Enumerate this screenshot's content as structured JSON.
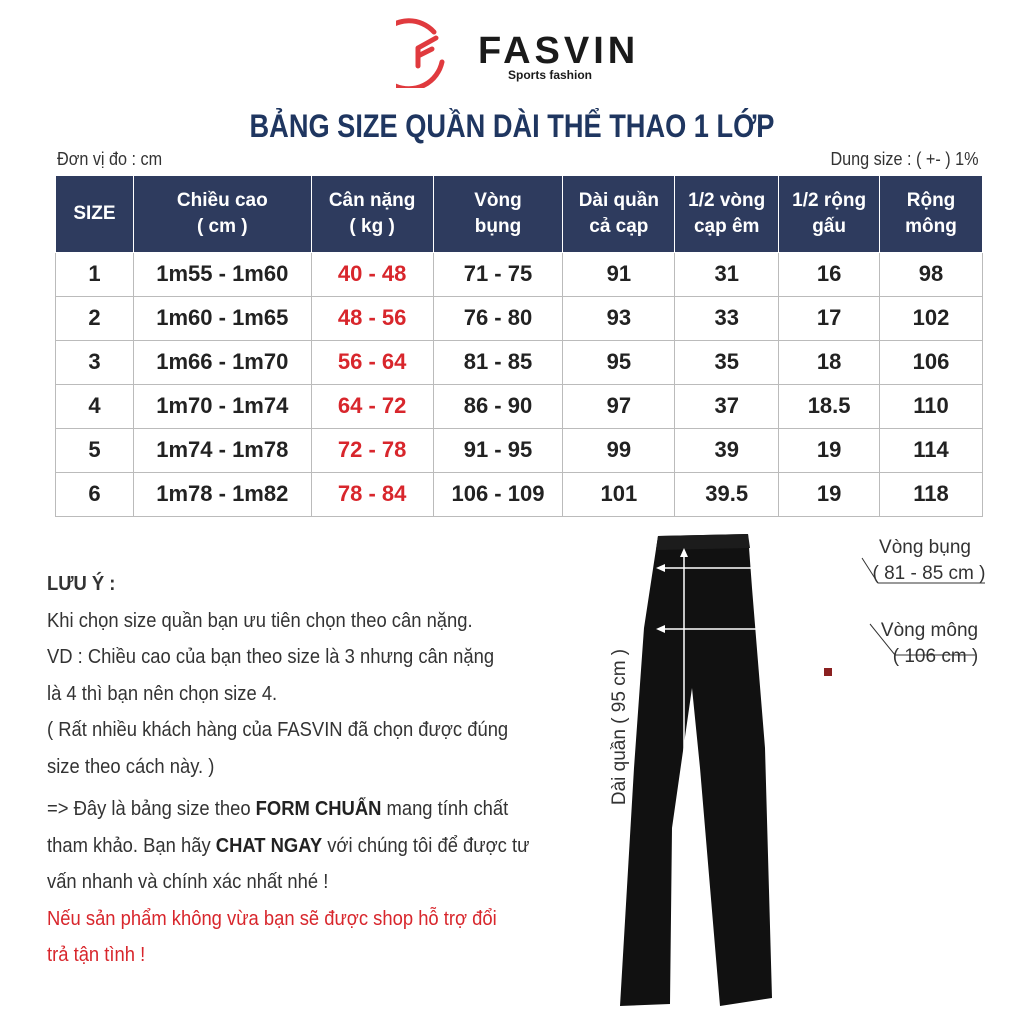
{
  "brand": {
    "name": "FASVIN",
    "tagline": "Sports fashion",
    "color": "#e03a3e"
  },
  "title": "BẢNG SIZE QUẦN DÀI THỂ THAO 1 LỚP",
  "unit": "Đơn vị đo : cm",
  "tolerance": "Dung size : ( +- ) 1%",
  "table": {
    "headers": [
      "SIZE",
      "Chiều cao\n( cm )",
      "Cân nặng\n( kg )",
      "Vòng\nbụng",
      "Dài quần\ncả cạp",
      "1/2 vòng\ncạp êm",
      "1/2 rộng\ngấu",
      "Rộng\nmông"
    ],
    "rows": [
      [
        "1",
        "1m55 - 1m60",
        "40 - 48",
        "71 - 75",
        "91",
        "31",
        "16",
        "98"
      ],
      [
        "2",
        "1m60 - 1m65",
        "48 - 56",
        "76 - 80",
        "93",
        "33",
        "17",
        "102"
      ],
      [
        "3",
        "1m66 - 1m70",
        "56 - 64",
        "81 - 85",
        "95",
        "35",
        "18",
        "106"
      ],
      [
        "4",
        "1m70 - 1m74",
        "64 - 72",
        "86 - 90",
        "97",
        "37",
        "18.5",
        "110"
      ],
      [
        "5",
        "1m74 - 1m78",
        "72 - 78",
        "91 - 95",
        "99",
        "39",
        "19",
        "114"
      ],
      [
        "6",
        "1m78 - 1m82",
        "78 - 84",
        "106 - 109",
        "101",
        "39.5",
        "19",
        "118"
      ]
    ],
    "header_color": "#2e3b5e",
    "weight_color": "#d8262c"
  },
  "notes": {
    "heading": "LƯU Ý :",
    "l1": "Khi chọn size quần bạn ưu tiên chọn theo cân nặng.",
    "l2": "VD : Chiều cao của bạn theo size là 3 nhưng cân nặng",
    "l3": "là 4 thì bạn nên chọn size 4.",
    "l4": "( Rất nhiều khách hàng của FASVIN đã chọn được đúng",
    "l5": "size theo cách này. )",
    "l6a": "=> Đây là bảng size theo ",
    "l6b": "FORM CHUẨN",
    "l6c": "  mang tính chất",
    "l7a": "tham khảo. Bạn hãy ",
    "l7b": "CHAT NGAY",
    "l7c": " với chúng tôi để được tư",
    "l8": "vấn nhanh và chính xác nhất nhé !",
    "r1": "Nếu sản phẩm không vừa bạn sẽ được shop hỗ trợ đổi",
    "r2": "trả tận tình !"
  },
  "diagram": {
    "waist_label": "Vòng bụng",
    "waist_value": "( 81 - 85 cm )",
    "hip_label": "Vòng mông",
    "hip_value": "( 106 cm )",
    "length_label": "Dài quần ( 95 cm )"
  }
}
